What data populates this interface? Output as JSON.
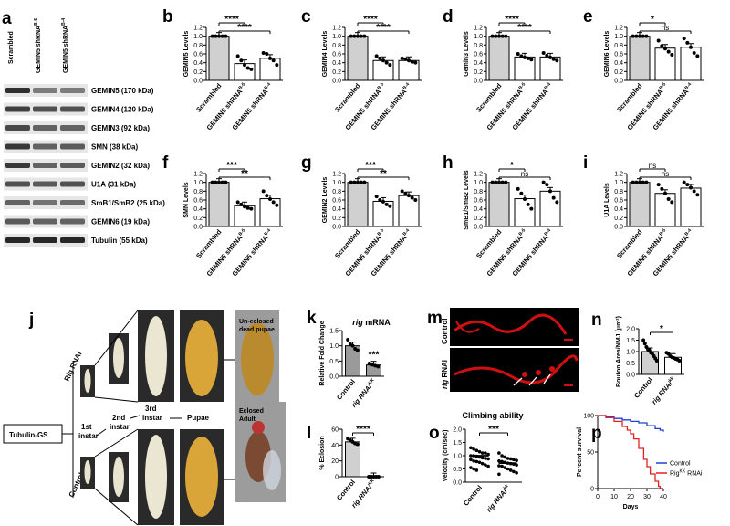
{
  "panel_letters": {
    "a": "a",
    "b": "b",
    "c": "c",
    "d": "d",
    "e": "e",
    "f": "f",
    "g": "g",
    "h": "h",
    "i": "i",
    "j": "j",
    "k": "k",
    "l": "l",
    "m": "m",
    "n": "n",
    "o": "o",
    "p": "p"
  },
  "blot": {
    "lanes": [
      "Scrambled",
      "GEMIN5 shRNA",
      "GEMIN5 shRNA"
    ],
    "lane_sups": [
      "",
      "B-5",
      "B-4"
    ],
    "bands": [
      "GEMIN5 (170 kDa)",
      "GEMIN4 (120 kDa)",
      "GEMIN3 (92 kDa)",
      "SMN (38 kDa)",
      "GEMIN2 (32 kDa)",
      "U1A (31 kDa)",
      "SmB1/SmB2 (25 kDa)",
      "GEMIN6 (19 kDa)",
      "Tubulin (55 kDa)"
    ]
  },
  "bar_categories": [
    "Scrambled",
    "GEMIN5 shRNA",
    "GEMIN5 shRNA"
  ],
  "bar_category_sups": [
    "",
    "B-5",
    "B-4"
  ],
  "bar_yticks": [
    "0.0",
    "0.2",
    "0.4",
    "0.6",
    "0.8",
    "1.0",
    "1.2"
  ],
  "chart_data": [
    {
      "panel": "b",
      "type": "bar",
      "ylabel": "GEMIN5 Levels",
      "ylim": [
        0,
        1.2
      ],
      "values": [
        1.0,
        0.38,
        0.5
      ],
      "points": [
        [
          1,
          1,
          1,
          1,
          1
        ],
        [
          0.55,
          0.45,
          0.35,
          0.28,
          0.25
        ],
        [
          0.62,
          0.6,
          0.5,
          0.45,
          0.35
        ]
      ],
      "sig": [
        {
          "from": 0,
          "to": 1,
          "label": "****"
        },
        {
          "from": 0,
          "to": 2,
          "label": "****"
        }
      ]
    },
    {
      "panel": "c",
      "type": "bar",
      "ylabel": "GEMIN4 Levels",
      "ylim": [
        0,
        1.2
      ],
      "values": [
        1.0,
        0.45,
        0.45
      ],
      "points": [
        [
          1,
          1,
          1,
          1,
          1
        ],
        [
          0.55,
          0.5,
          0.45,
          0.4,
          0.35
        ],
        [
          0.5,
          0.48,
          0.45,
          0.42,
          0.4
        ]
      ],
      "sig": [
        {
          "from": 0,
          "to": 1,
          "label": "****"
        },
        {
          "from": 0,
          "to": 2,
          "label": "****"
        }
      ]
    },
    {
      "panel": "d",
      "type": "bar",
      "ylabel": "Gemin3 Levels",
      "ylim": [
        0,
        1.2
      ],
      "values": [
        1.0,
        0.53,
        0.53
      ],
      "points": [
        [
          1,
          1,
          1,
          1,
          1
        ],
        [
          0.6,
          0.55,
          0.52,
          0.5,
          0.47
        ],
        [
          0.62,
          0.56,
          0.52,
          0.48,
          0.45
        ]
      ],
      "sig": [
        {
          "from": 0,
          "to": 1,
          "label": "****"
        },
        {
          "from": 0,
          "to": 2,
          "label": "****"
        }
      ]
    },
    {
      "panel": "e",
      "type": "bar",
      "ylabel": "GEMIN6 Levels",
      "ylim": [
        0,
        1.2
      ],
      "values": [
        1.0,
        0.73,
        0.75
      ],
      "points": [
        [
          1,
          1,
          1,
          1,
          1
        ],
        [
          0.9,
          0.78,
          0.72,
          0.65,
          0.58
        ],
        [
          0.95,
          0.85,
          0.75,
          0.62,
          0.55
        ]
      ],
      "sig": [
        {
          "from": 0,
          "to": 1,
          "label": "*"
        },
        {
          "from": 0,
          "to": 2,
          "label": "ns"
        }
      ]
    },
    {
      "panel": "f",
      "type": "bar",
      "ylabel": "SMN Levels",
      "ylim": [
        0,
        1.2
      ],
      "values": [
        1.0,
        0.47,
        0.63
      ],
      "points": [
        [
          1,
          1,
          1,
          1,
          1
        ],
        [
          0.55,
          0.5,
          0.45,
          0.42,
          0.4
        ],
        [
          0.8,
          0.7,
          0.62,
          0.55,
          0.48
        ]
      ],
      "sig": [
        {
          "from": 0,
          "to": 1,
          "label": "***"
        },
        {
          "from": 0,
          "to": 2,
          "label": "**"
        }
      ]
    },
    {
      "panel": "g",
      "type": "bar",
      "ylabel": "GEMIN2 Levels",
      "ylim": [
        0,
        1.2
      ],
      "values": [
        1.0,
        0.57,
        0.7
      ],
      "points": [
        [
          1,
          1,
          1,
          1,
          1
        ],
        [
          0.68,
          0.6,
          0.56,
          0.5,
          0.46
        ],
        [
          0.8,
          0.75,
          0.7,
          0.65,
          0.6
        ]
      ],
      "sig": [
        {
          "from": 0,
          "to": 1,
          "label": "***"
        },
        {
          "from": 0,
          "to": 2,
          "label": "**"
        }
      ]
    },
    {
      "panel": "h",
      "type": "bar",
      "ylabel": "SmB1/SmB2 Levels",
      "ylim": [
        0,
        1.2
      ],
      "values": [
        1.0,
        0.63,
        0.8
      ],
      "points": [
        [
          1,
          1,
          1,
          1,
          1
        ],
        [
          0.85,
          0.75,
          0.62,
          0.5,
          0.4
        ],
        [
          1.0,
          0.95,
          0.8,
          0.65,
          0.55
        ]
      ],
      "sig": [
        {
          "from": 0,
          "to": 1,
          "label": "*"
        },
        {
          "from": 0,
          "to": 2,
          "label": "ns"
        }
      ]
    },
    {
      "panel": "i",
      "type": "bar",
      "ylabel": "U1A Levels",
      "ylim": [
        0,
        1.2
      ],
      "values": [
        1.0,
        0.75,
        0.87
      ],
      "points": [
        [
          1,
          1,
          1,
          1,
          1
        ],
        [
          0.95,
          0.85,
          0.75,
          0.62,
          0.55
        ],
        [
          1.0,
          0.95,
          0.88,
          0.8,
          0.72
        ]
      ],
      "sig": [
        {
          "from": 0,
          "to": 1,
          "label": "ns"
        },
        {
          "from": 0,
          "to": 2,
          "label": "ns"
        }
      ]
    },
    {
      "panel": "k",
      "type": "bar",
      "title": "rig mRNA",
      "ylabel": "Relative Fold Change",
      "ylim": [
        0,
        1.5
      ],
      "yticks": [
        "0.0",
        "0.5",
        "1.0",
        "1.5"
      ],
      "categories": [
        "Control",
        "rig RNAi"
      ],
      "category_sups": [
        "",
        "KK"
      ],
      "values": [
        1.0,
        0.37
      ],
      "points": [
        [
          1.2,
          1.05,
          1.0,
          0.9,
          0.85
        ],
        [
          0.42,
          0.38,
          0.35,
          0.32
        ]
      ],
      "sig": [
        {
          "over": 1,
          "label": "***"
        }
      ]
    },
    {
      "panel": "l",
      "type": "bar",
      "ylabel": "% Eclosion",
      "ylim": [
        0,
        60
      ],
      "yticks": [
        "0",
        "20",
        "40",
        "60"
      ],
      "categories": [
        "Control",
        "rig RNAi"
      ],
      "category_sups": [
        "",
        "KK"
      ],
      "values": [
        44,
        0
      ],
      "points": [
        [
          48,
          46,
          44,
          42,
          41
        ],
        [
          0,
          0,
          0,
          0,
          0
        ]
      ],
      "sig": [
        {
          "from": 0,
          "to": 1,
          "label": "****"
        }
      ]
    },
    {
      "panel": "n",
      "type": "bar",
      "ylabel": "Bouton Area/NMJ (μm²)",
      "ylim": [
        0,
        2.0
      ],
      "yticks": [
        "0.0",
        "0.5",
        "1.0",
        "1.5",
        "2.0"
      ],
      "categories": [
        "Control",
        "rig RNAi"
      ],
      "category_sups": [
        "",
        "kk"
      ],
      "values": [
        1.0,
        0.75
      ],
      "points": [
        [
          1.5,
          1.35,
          1.2,
          1.1,
          1.05,
          0.95,
          0.9,
          0.8,
          0.7,
          0.6
        ],
        [
          0.95,
          0.9,
          0.8,
          0.75,
          0.72,
          0.68,
          0.65,
          0.6
        ]
      ],
      "sig": [
        {
          "from": 0,
          "to": 1,
          "label": "*"
        }
      ]
    },
    {
      "panel": "o",
      "type": "scatter",
      "title": "Climbing ability",
      "ylabel": "Velocity (cm/sec)",
      "ylim": [
        0,
        2.0
      ],
      "yticks": [
        "0.0",
        "0.5",
        "1.0",
        "1.5",
        "2.0"
      ],
      "categories": [
        "Control",
        "rig RNAi"
      ],
      "category_sups": [
        "",
        "kk"
      ],
      "means": [
        1.0,
        0.72
      ],
      "sig": [
        {
          "from": 0,
          "to": 1,
          "label": "***"
        }
      ]
    },
    {
      "panel": "p",
      "type": "line",
      "ylabel": "Percent survival",
      "xlabel": "Days",
      "xlim": [
        0,
        40
      ],
      "ylim": [
        0,
        100
      ],
      "xticks": [
        "0",
        "10",
        "20",
        "30",
        "40"
      ],
      "yticks": [
        "0",
        "50",
        "100"
      ],
      "series": [
        {
          "name": "Control",
          "color": "#1f3fd6",
          "x": [
            0,
            5,
            10,
            15,
            20,
            25,
            30,
            35,
            38,
            40
          ],
          "y": [
            100,
            98,
            96,
            94,
            92,
            90,
            86,
            82,
            80,
            78
          ]
        },
        {
          "name": "Rig RNAi",
          "name_sup": "KK",
          "color": "#e62020",
          "x": [
            0,
            5,
            10,
            15,
            18,
            20,
            22,
            25,
            28,
            30,
            32,
            35,
            37,
            38
          ],
          "y": [
            100,
            97,
            92,
            85,
            80,
            75,
            68,
            55,
            40,
            30,
            20,
            10,
            3,
            0
          ]
        }
      ],
      "legend": "bottom-right"
    }
  ],
  "panel_j": {
    "rig_label": "Rig RNAi",
    "control_label": "Control",
    "driver": "Tubulin-GS",
    "stage1": "1st",
    "stage1b": "instar",
    "stage2": "2nd",
    "stage2b": "instar",
    "stage3": "3rd",
    "stage3b": "instar",
    "pupae": "Pupae",
    "uneclosed1": "Un-eclosed",
    "uneclosed2": "dead pupae",
    "eclosed1": "Eclosed",
    "eclosed2": "Adult"
  },
  "panel_m": {
    "top_label": "Control",
    "bottom_label": "rig",
    "bottom_label2": "RNAi"
  },
  "colors": {
    "bar_control": "#d0d0d0",
    "bar_kd": "#ffffff",
    "bar_k_control": "#9a9a9a",
    "control_line": "#1f3fd6",
    "rnai_line": "#e62020",
    "nmj": "#d01010"
  }
}
